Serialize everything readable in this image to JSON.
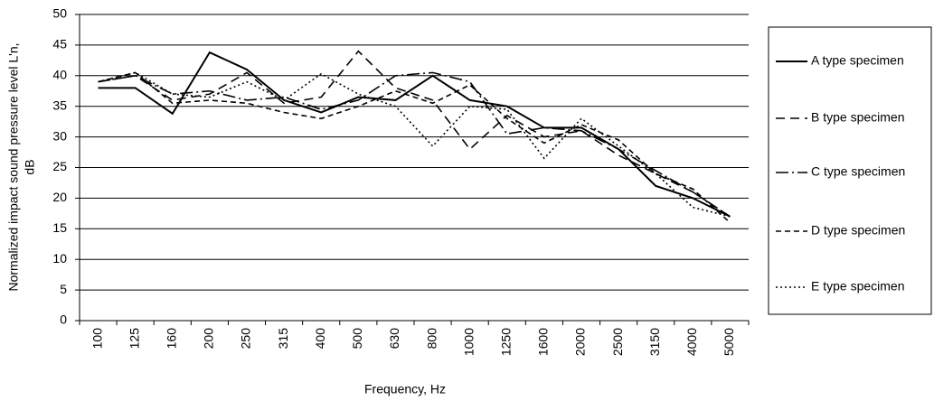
{
  "chart_data": {
    "type": "line",
    "ylabel": [
      "Normalized impact sound pressure level L'n,",
      "dB"
    ],
    "xlabel": "Frequency, Hz",
    "categories": [
      "100",
      "125",
      "160",
      "200",
      "250",
      "315",
      "400",
      "500",
      "630",
      "800",
      "1000",
      "1250",
      "1600",
      "2000",
      "2500",
      "3150",
      "4000",
      "5000"
    ],
    "ylim": [
      0,
      50
    ],
    "yticks": [
      0,
      5,
      10,
      15,
      20,
      25,
      30,
      35,
      40,
      45,
      50
    ],
    "grid": true,
    "legend": "right",
    "series": [
      {
        "name": "A type specimen",
        "color": "#000000",
        "dash": "none",
        "values": [
          38,
          38,
          33.8,
          43.8,
          41,
          36,
          34,
          36.5,
          36,
          40,
          36,
          35,
          31.5,
          31.5,
          28,
          22,
          20,
          17
        ]
      },
      {
        "name": "B type specimen",
        "color": "#000000",
        "dash": "10,6",
        "values": [
          39,
          40,
          36,
          37,
          40.5,
          35.5,
          36.5,
          44,
          38,
          36,
          28,
          33.5,
          30,
          31,
          27,
          24,
          21,
          17
        ]
      },
      {
        "name": "C type specimen",
        "color": "#000000",
        "dash": "14,4,2,4",
        "values": [
          39,
          40,
          37,
          37.5,
          36,
          36.5,
          34.5,
          36,
          40,
          40.5,
          39,
          30.5,
          31.5,
          31,
          28,
          24.5,
          21,
          17
        ]
      },
      {
        "name": "D type specimen",
        "color": "#000000",
        "dash": "6,4",
        "values": [
          39,
          40.5,
          35.5,
          36,
          35.5,
          34,
          33,
          35,
          37.5,
          35.5,
          38.5,
          33,
          29,
          32,
          29.5,
          24,
          21.5,
          16
        ]
      },
      {
        "name": "E type specimen",
        "color": "#000000",
        "dash": "2,3",
        "values": [
          39,
          40.5,
          37,
          36.5,
          39,
          36,
          40.3,
          37,
          35,
          28.5,
          35,
          34.5,
          26.5,
          33,
          28.5,
          24,
          18.5,
          17
        ]
      }
    ]
  }
}
